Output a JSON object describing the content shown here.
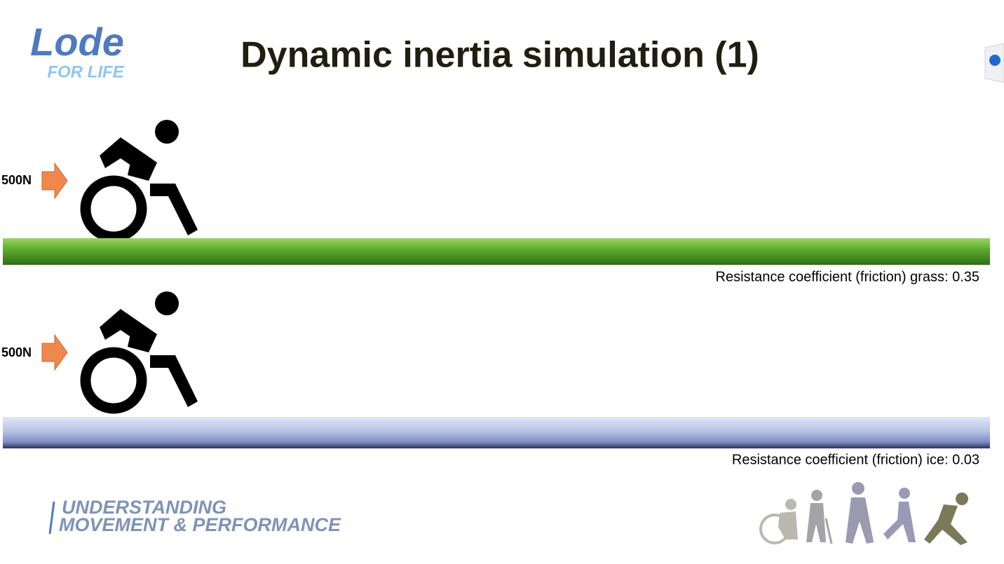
{
  "logo": {
    "brand": "Lode",
    "tagline": "FOR LIFE"
  },
  "title": "Dynamic inertia simulation (1)",
  "scenes": [
    {
      "force": "500N",
      "caption": "Resistance coefficient (friction) grass: 0.35"
    },
    {
      "force": "500N",
      "caption": "Resistance coefficient (friction) ice: 0.03"
    }
  ],
  "footer": {
    "line1": "UNDERSTANDING",
    "line2": "MOVEMENT & PERFORMANCE"
  }
}
